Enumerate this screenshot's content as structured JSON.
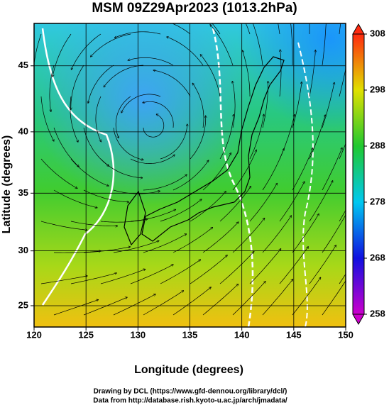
{
  "chart_data": {
    "type": "map",
    "projection": "mercator",
    "title": "MSM 09Z29Apr2023 (1013.2hPa)",
    "x_label": "Longitude (degrees)",
    "y_label": "Latitude  (degrees)",
    "xlim": [
      120,
      150
    ],
    "xticks": [
      120,
      125,
      130,
      135,
      140,
      145,
      150
    ],
    "ylim": [
      23,
      48
    ],
    "yticks": [
      25,
      30,
      35,
      40,
      45
    ],
    "grid": true,
    "colorbar": {
      "range": [
        258,
        308
      ],
      "ticks": [
        258,
        268,
        278,
        288,
        298,
        308
      ],
      "colors": [
        "#cc00cc",
        "#1010e0",
        "#00c8f0",
        "#20c830",
        "#e0e000",
        "#ff2a10"
      ]
    },
    "credits": [
      "Drawing by DCL (https://www.gfd-dennou.org/library/dcl/)",
      "Data from http://database.rish.kyoto-u.ac.jp/arch/jmadata/"
    ]
  }
}
